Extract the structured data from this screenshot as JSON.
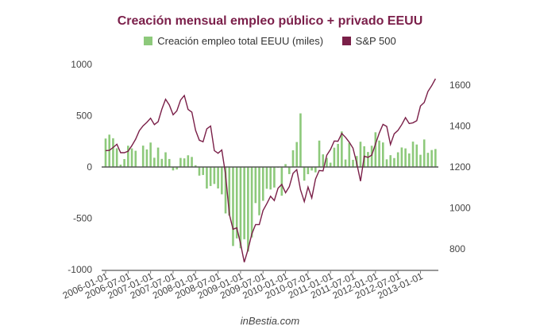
{
  "chart_data": {
    "type": "bar+line",
    "title": "Creación mensual empleo público + privado EEUU",
    "footer": "inBestia.com",
    "colors": {
      "bars": "#8dc97b",
      "line": "#7a1f48",
      "title": "#7b1f4a"
    },
    "start_month": "2006-01",
    "x_tick_labels": [
      "2006-01-01",
      "2006-07-01",
      "2007-01-01",
      "2007-07-01",
      "2008-01-01",
      "2008-07-01",
      "2009-01-01",
      "2009-07-01",
      "2010-01-01",
      "2010-07-01",
      "2011-01-01",
      "2011-07-01",
      "2012-01-01",
      "2012-07-01",
      "2013-01-01"
    ],
    "y_left": {
      "ticks": [
        1000,
        500,
        0,
        -500,
        -1000
      ],
      "labels": [
        "1000",
        "500",
        "0",
        "-500",
        "-1000"
      ],
      "range": [
        -1000,
        1000
      ]
    },
    "y_right": {
      "ticks": [
        1600,
        1400,
        1200,
        1000,
        800
      ],
      "labels": [
        "1600",
        "1400",
        "1200",
        "1000",
        "800"
      ],
      "range": [
        710,
        1700
      ]
    },
    "series": [
      {
        "name": "Creación empleo total EEUU (miles)",
        "type": "bar",
        "axis": "left",
        "values": [
          277,
          315,
          280,
          182,
          23,
          77,
          207,
          181,
          158,
          4,
          208,
          171,
          238,
          90,
          189,
          79,
          143,
          78,
          -33,
          -24,
          88,
          84,
          114,
          98,
          17,
          -84,
          -78,
          -210,
          -185,
          -165,
          -209,
          -266,
          -452,
          -473,
          -769,
          -695,
          -791,
          -703,
          -823,
          -686,
          -351,
          -470,
          -329,
          -212,
          -219,
          -200,
          -7,
          -279,
          28,
          -69,
          163,
          243,
          522,
          -133,
          -70,
          -34,
          -52,
          257,
          123,
          88,
          42,
          188,
          225,
          346,
          73,
          235,
          70,
          107,
          246,
          202,
          146,
          207,
          338,
          257,
          239,
          75,
          115,
          87,
          143,
          190,
          181,
          132,
          247,
          219,
          119,
          268,
          138,
          165,
          175
        ]
      },
      {
        "name": "S&P 500",
        "type": "line",
        "axis": "right",
        "values": [
          1280,
          1281,
          1295,
          1311,
          1270,
          1270,
          1277,
          1304,
          1336,
          1378,
          1401,
          1418,
          1438,
          1407,
          1421,
          1482,
          1531,
          1503,
          1455,
          1474,
          1527,
          1549,
          1481,
          1468,
          1379,
          1331,
          1323,
          1386,
          1400,
          1280,
          1267,
          1283,
          1165,
          969,
          896,
          903,
          826,
          735,
          798,
          873,
          919,
          919,
          987,
          1021,
          1057,
          1036,
          1096,
          1115,
          1074,
          1104,
          1169,
          1187,
          1089,
          1031,
          1102,
          1049,
          1141,
          1183,
          1181,
          1258,
          1286,
          1327,
          1326,
          1364,
          1345,
          1321,
          1292,
          1219,
          1131,
          1253,
          1247,
          1258,
          1312,
          1366,
          1408,
          1398,
          1310,
          1362,
          1379,
          1407,
          1441,
          1412,
          1416,
          1426,
          1498,
          1515,
          1569,
          1597,
          1631
        ]
      }
    ],
    "legend_position": "top"
  }
}
